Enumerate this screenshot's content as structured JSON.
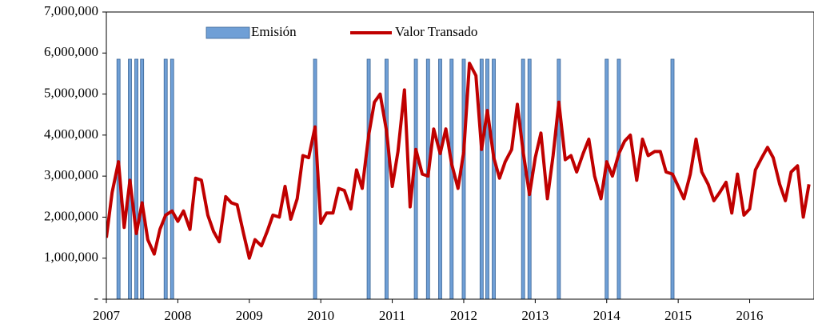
{
  "chart_data": {
    "type": "line",
    "xlim": [
      2007,
      2016.9
    ],
    "xticks": [
      2007,
      2008,
      2009,
      2010,
      2011,
      2012,
      2013,
      2014,
      2015,
      2016
    ],
    "ylim": [
      0,
      7000000
    ],
    "yticks": [
      {
        "value": 0,
        "label": "-"
      },
      {
        "value": 1000000,
        "label": "1,000,000"
      },
      {
        "value": 2000000,
        "label": "2,000,000"
      },
      {
        "value": 3000000,
        "label": "3,000,000"
      },
      {
        "value": 4000000,
        "label": "4,000,000"
      },
      {
        "value": 5000000,
        "label": "5,000,000"
      },
      {
        "value": 6000000,
        "label": "6,000,000"
      },
      {
        "value": 7000000,
        "label": "7,000,000"
      }
    ],
    "legend": "top",
    "series": [
      {
        "name": "Emisión",
        "type": "bar",
        "color": "#6f9fd6",
        "x": [
          2007.17,
          2007.33,
          2007.42,
          2007.5,
          2007.83,
          2007.92,
          2009.92,
          2010.67,
          2010.92,
          2011.33,
          2011.5,
          2011.67,
          2011.83,
          2012.0,
          2012.25,
          2012.33,
          2012.42,
          2012.83,
          2012.92,
          2013.33,
          2014.0,
          2014.17,
          2014.92
        ],
        "values": [
          5850000,
          5850000,
          5850000,
          5850000,
          5850000,
          5850000,
          5850000,
          5850000,
          5850000,
          5850000,
          5850000,
          5850000,
          5850000,
          5850000,
          5850000,
          5850000,
          5850000,
          5850000,
          5850000,
          5850000,
          5850000,
          5850000,
          5850000
        ]
      },
      {
        "name": "Valor Transado",
        "type": "line",
        "color": "#c00000",
        "x": [
          2007.0,
          2007.08,
          2007.17,
          2007.25,
          2007.33,
          2007.42,
          2007.5,
          2007.58,
          2007.67,
          2007.75,
          2007.83,
          2007.92,
          2008.0,
          2008.08,
          2008.17,
          2008.25,
          2008.33,
          2008.42,
          2008.5,
          2008.58,
          2008.67,
          2008.75,
          2008.83,
          2008.92,
          2009.0,
          2009.08,
          2009.17,
          2009.25,
          2009.33,
          2009.42,
          2009.5,
          2009.58,
          2009.67,
          2009.75,
          2009.83,
          2009.92,
          2010.0,
          2010.08,
          2010.17,
          2010.25,
          2010.33,
          2010.42,
          2010.5,
          2010.58,
          2010.67,
          2010.75,
          2010.83,
          2010.92,
          2011.0,
          2011.08,
          2011.17,
          2011.25,
          2011.33,
          2011.42,
          2011.5,
          2011.58,
          2011.67,
          2011.75,
          2011.83,
          2011.92,
          2012.0,
          2012.08,
          2012.17,
          2012.25,
          2012.33,
          2012.42,
          2012.5,
          2012.58,
          2012.67,
          2012.75,
          2012.83,
          2012.92,
          2013.0,
          2013.08,
          2013.17,
          2013.25,
          2013.33,
          2013.42,
          2013.5,
          2013.58,
          2013.67,
          2013.75,
          2013.83,
          2013.92,
          2014.0,
          2014.08,
          2014.17,
          2014.25,
          2014.33,
          2014.42,
          2014.5,
          2014.58,
          2014.67,
          2014.75,
          2014.83,
          2014.92,
          2015.0,
          2015.08,
          2015.17,
          2015.25,
          2015.33,
          2015.42,
          2015.5,
          2015.58,
          2015.67,
          2015.75,
          2015.83,
          2015.92,
          2016.0,
          2016.08,
          2016.17,
          2016.25,
          2016.33,
          2016.42,
          2016.5,
          2016.58,
          2016.67,
          2016.75,
          2016.83
        ],
        "values": [
          1500000,
          2600000,
          3350000,
          1750000,
          2900000,
          1600000,
          2350000,
          1450000,
          1100000,
          1700000,
          2050000,
          2150000,
          1900000,
          2150000,
          1700000,
          2950000,
          2900000,
          2050000,
          1650000,
          1400000,
          2500000,
          2350000,
          2300000,
          1600000,
          1000000,
          1450000,
          1300000,
          1650000,
          2050000,
          2000000,
          2750000,
          1950000,
          2450000,
          3500000,
          3450000,
          4200000,
          1850000,
          2100000,
          2100000,
          2700000,
          2650000,
          2200000,
          3150000,
          2700000,
          4000000,
          4800000,
          5000000,
          4100000,
          2750000,
          3600000,
          5100000,
          2250000,
          3650000,
          3050000,
          3000000,
          4150000,
          3550000,
          4150000,
          3300000,
          2700000,
          3600000,
          5750000,
          5450000,
          3650000,
          4600000,
          3450000,
          2950000,
          3350000,
          3650000,
          4750000,
          3600000,
          2550000,
          3450000,
          4050000,
          2450000,
          3500000,
          4800000,
          3400000,
          3500000,
          3100000,
          3550000,
          3900000,
          3000000,
          2450000,
          3350000,
          3000000,
          3550000,
          3850000,
          4000000,
          2900000,
          3900000,
          3500000,
          3600000,
          3600000,
          3100000,
          3050000,
          2750000,
          2450000,
          3050000,
          3900000,
          3100000,
          2800000,
          2400000,
          2600000,
          2850000,
          2100000,
          3050000,
          2050000,
          2200000,
          3150000,
          3450000,
          3700000,
          3450000,
          2800000,
          2400000,
          3100000,
          3250000,
          2000000,
          2800000
        ]
      }
    ]
  }
}
